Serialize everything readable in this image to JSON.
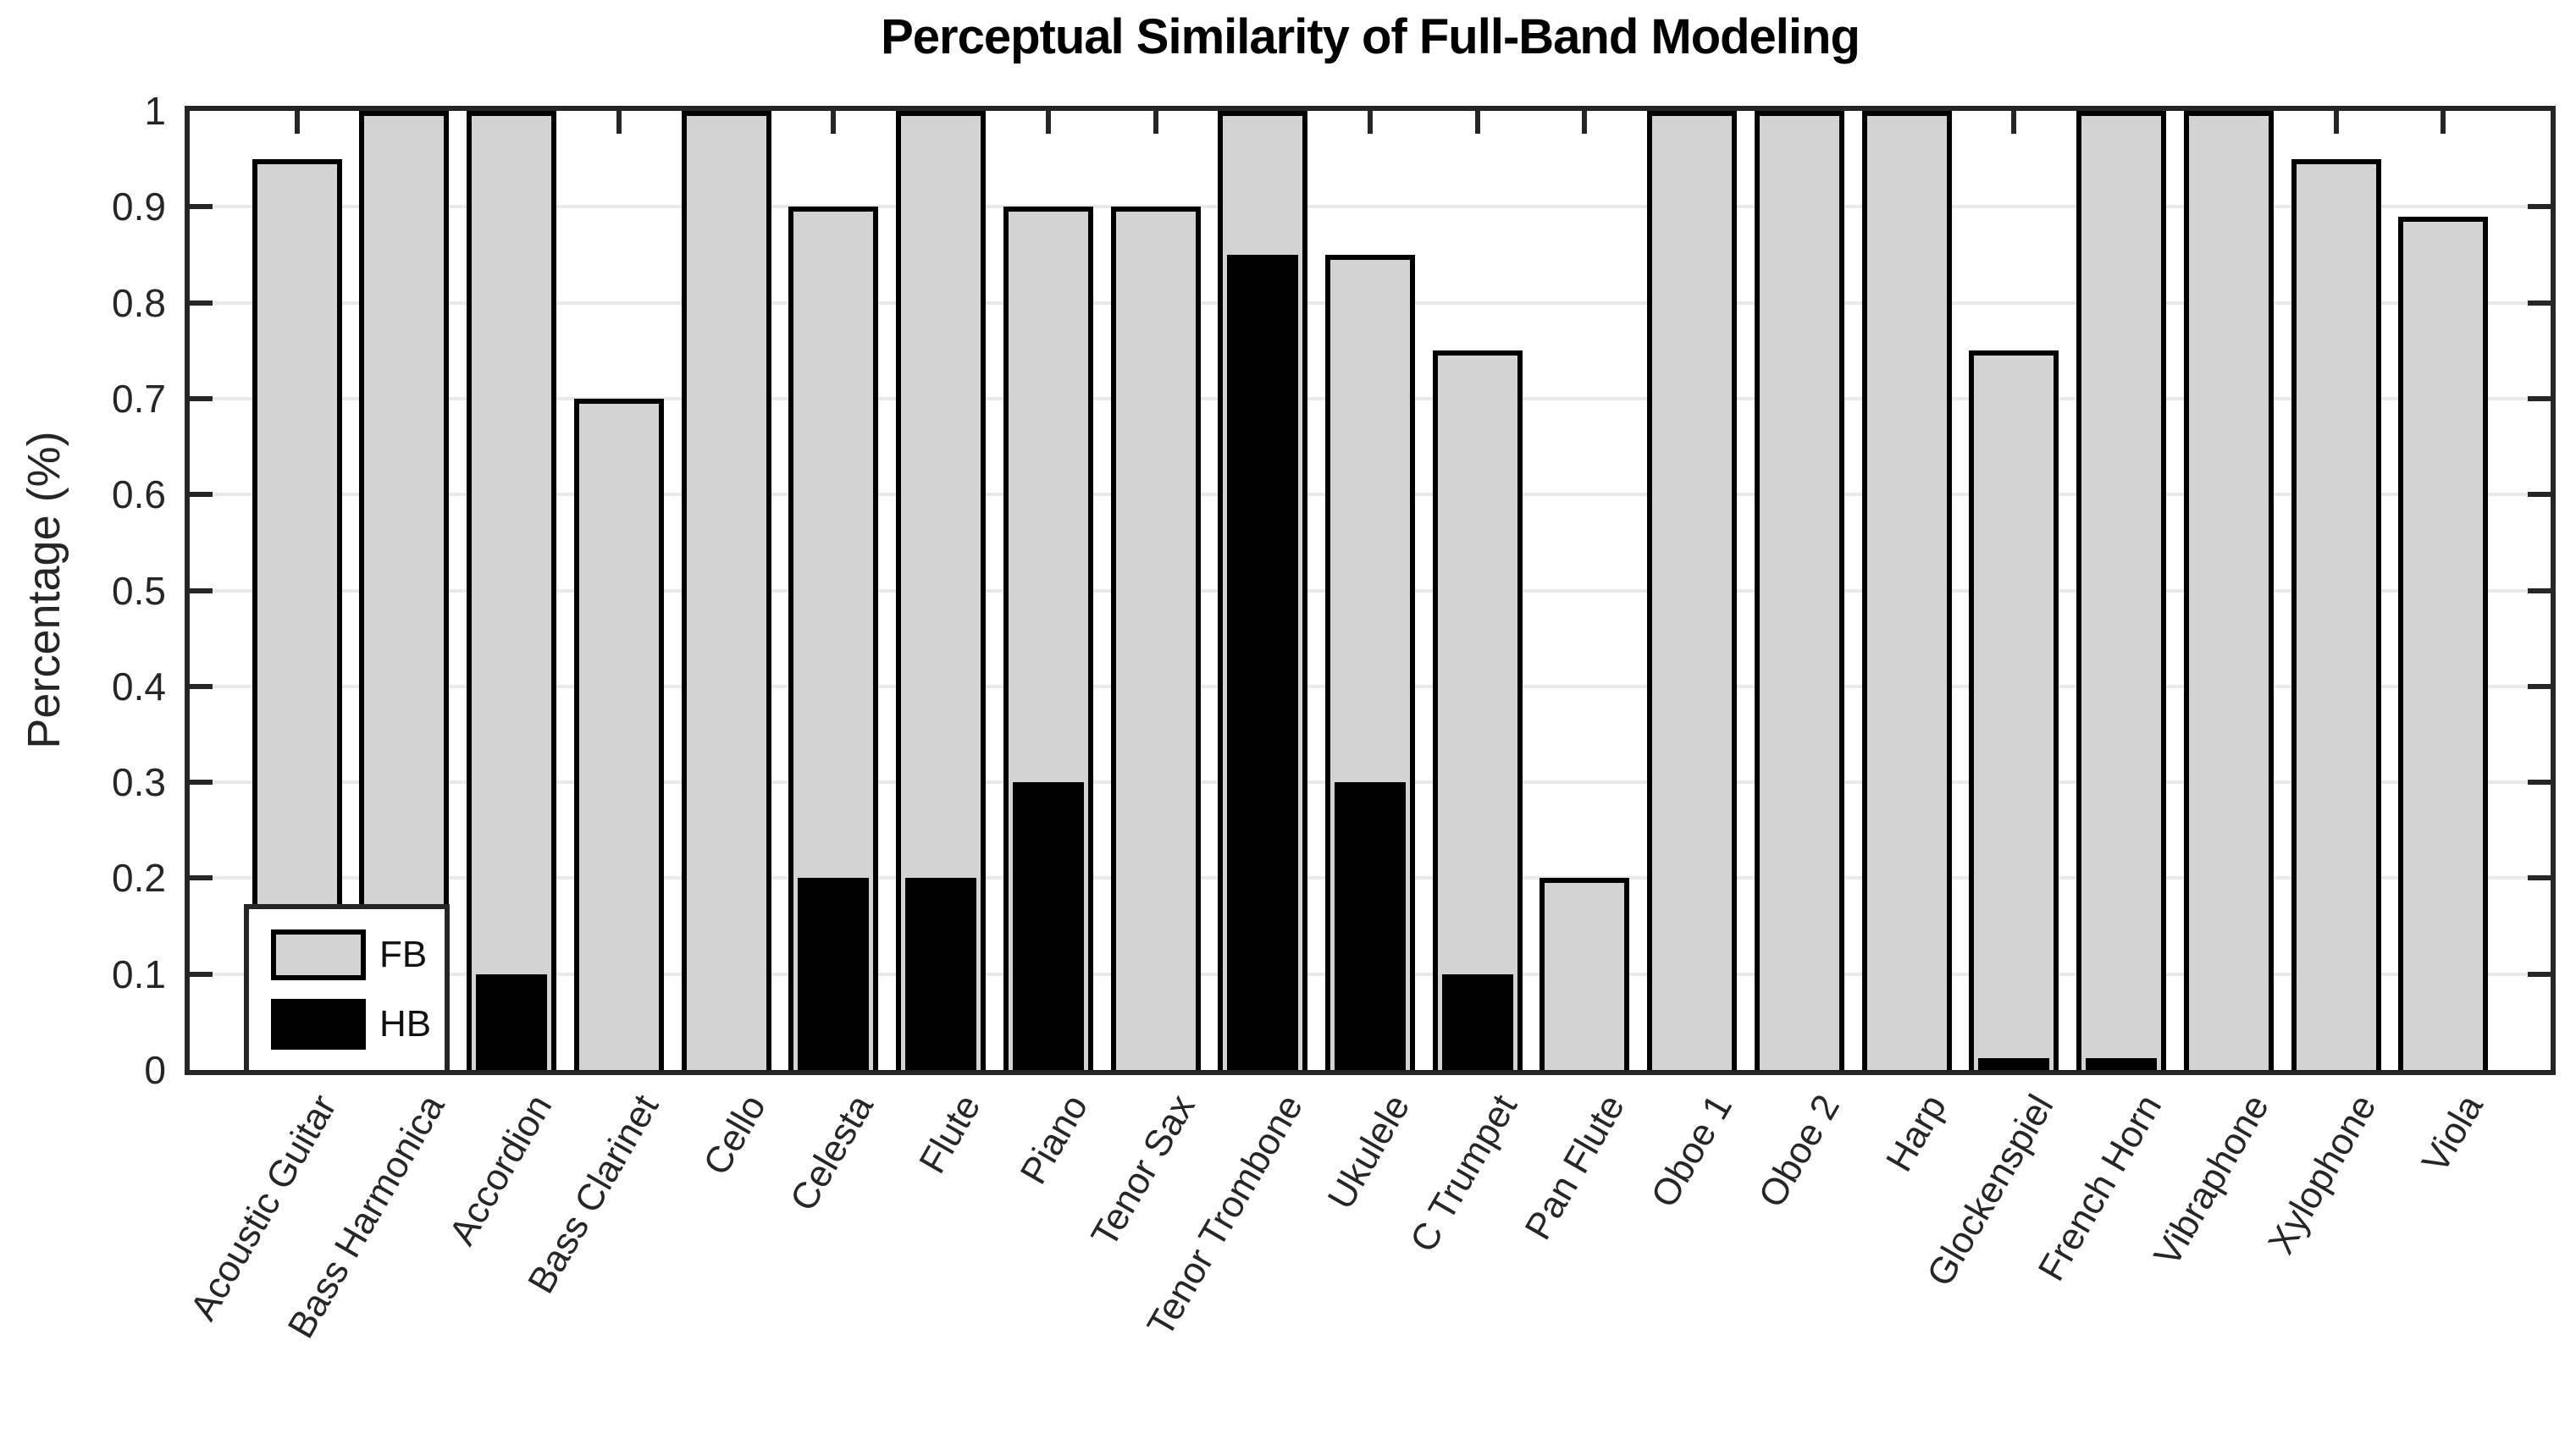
{
  "chart_data": {
    "type": "bar",
    "title": "Perceptual Similarity of Full-Band Modeling",
    "xlabel": "",
    "ylabel": "Percentage (%)",
    "ylim": [
      0,
      1
    ],
    "yticks": [
      0,
      0.1,
      0.2,
      0.3,
      0.4,
      0.5,
      0.6,
      0.7,
      0.8,
      0.9,
      1
    ],
    "ytick_labels": [
      "0",
      "0.1",
      "0.2",
      "0.3",
      "0.4",
      "0.5",
      "0.6",
      "0.7",
      "0.8",
      "0.9",
      "1"
    ],
    "grid": "horizontal",
    "legend_position": "bottom-left",
    "bar_style": "overlaid",
    "categories": [
      "Acoustic Guitar",
      "Bass Harmonica",
      "Accordion",
      "Bass Clarinet",
      "Cello",
      "Celesta",
      "Flute",
      "Piano",
      "Tenor Sax",
      "Tenor Trombone",
      "Ukulele",
      "C Trumpet",
      "Pan Flute",
      "Oboe 1",
      "Oboe 2",
      "Harp",
      "Glockenspiel",
      "French Horn",
      "Vibraphone",
      "Xylophone",
      "Viola"
    ],
    "series": [
      {
        "name": "FB",
        "color": "#d3d3d3",
        "values": [
          0.95,
          1,
          1,
          0.7,
          1,
          0.9,
          1,
          0.9,
          0.9,
          1,
          0.85,
          0.75,
          0.2,
          1,
          1,
          1,
          0.75,
          1,
          1,
          0.95,
          0.89
        ]
      },
      {
        "name": "HB",
        "color": "#000000",
        "values": [
          0,
          0,
          0.1,
          0,
          0,
          0.2,
          0.2,
          0.3,
          0,
          0.85,
          0.3,
          0.1,
          0,
          0,
          0,
          0,
          0.012,
          0.012,
          0,
          0,
          0
        ]
      }
    ],
    "colors": {
      "axis": "#262626",
      "gridline": "#e9e9e9",
      "fb_fill": "#d3d3d3",
      "hb_fill": "#000000",
      "bar_border": "#000000",
      "background": "#ffffff"
    }
  }
}
